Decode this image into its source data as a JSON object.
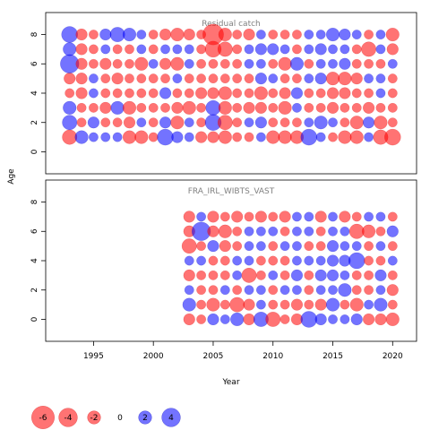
{
  "chart_data": {
    "type": "scatter",
    "xlabel": "Year",
    "ylabel": "Age",
    "xlim": [
      1991,
      2022
    ],
    "x_ticks": [
      1995,
      2000,
      2005,
      2010,
      2015,
      2020
    ],
    "y_ticks": [
      0,
      2,
      4,
      6,
      8
    ],
    "ylim": [
      -1.5,
      9.5
    ],
    "grid": false,
    "colors": {
      "negative": "#ff0000",
      "positive": "#0000ff",
      "alpha": 0.55
    },
    "panels": [
      {
        "title": "Residual catch",
        "years": [
          1993,
          1994,
          1995,
          1996,
          1997,
          1998,
          1999,
          2000,
          2001,
          2002,
          2003,
          2004,
          2005,
          2006,
          2007,
          2008,
          2009,
          2010,
          2011,
          2012,
          2013,
          2014,
          2015,
          2016,
          2017,
          2018,
          2019,
          2020
        ],
        "ages": [
          1,
          2,
          3,
          4,
          5,
          6,
          7,
          8
        ],
        "residuals": [
          [
            -2.5,
            2,
            1,
            1,
            1,
            -2,
            -2,
            -1,
            3,
            1.5,
            1,
            -1.5,
            -1.5,
            -2,
            -1,
            -1,
            1,
            -2,
            -2,
            -2,
            3,
            1,
            -1,
            -2,
            -2,
            1,
            -2.5,
            -3
          ],
          [
            2.5,
            -1,
            1.5,
            -1,
            -1,
            -1.5,
            1,
            -1,
            1.5,
            -2,
            1,
            -1,
            3,
            -2.5,
            -1,
            1,
            1.5,
            -1,
            -1,
            -1,
            1,
            2,
            1,
            -1,
            -2,
            1.5,
            -2,
            -1
          ],
          [
            2,
            -1,
            -1,
            -1.5,
            2,
            -2,
            -1,
            -1,
            -1,
            -1.5,
            -2,
            -1,
            2.5,
            -2,
            -1,
            -1.5,
            -1.5,
            -1,
            -2,
            1,
            -1,
            -1,
            -1.5,
            -1,
            -1,
            -1.5,
            -1,
            -1
          ],
          [
            -1,
            -1.5,
            1,
            -1,
            -1,
            -1,
            -1,
            -1,
            1.5,
            -1,
            -1,
            -1.5,
            -1.5,
            -2,
            -1,
            -1,
            -2,
            -1,
            -1.5,
            1.5,
            -1,
            -1,
            -1.5,
            -1.5,
            -1,
            -1,
            1,
            -1
          ],
          [
            -1.5,
            -1.5,
            1,
            -1,
            -1.5,
            -1,
            -1,
            -1,
            -1,
            1,
            -1,
            -1,
            -1,
            -1,
            -1,
            -1,
            1.5,
            1,
            -1,
            -1,
            1,
            1.5,
            -2,
            -2,
            -1.5,
            1,
            1,
            -1
          ],
          [
            4,
            -1.5,
            -1,
            -1.5,
            -1,
            -1,
            -2,
            1,
            -1.5,
            -2,
            1,
            -1,
            -1,
            -1,
            -1,
            1,
            1,
            -1,
            -2,
            2,
            -1,
            1,
            1,
            1.5,
            -1,
            -1,
            -1,
            1
          ],
          [
            2,
            -1.5,
            -1,
            1,
            -1,
            -1,
            1,
            -1,
            1,
            1,
            1,
            -1,
            -3,
            -2.5,
            -1,
            1,
            1.5,
            1.5,
            1,
            -1,
            1,
            1.5,
            1,
            1,
            -1,
            -2.5,
            1,
            -1.5
          ],
          [
            3,
            -1.5,
            -1,
            1.5,
            2.5,
            2,
            1,
            -1,
            -1.5,
            -2,
            -1.5,
            -1,
            -5,
            -2,
            -1,
            -1.5,
            1,
            -1,
            -1,
            -1,
            1,
            1,
            2,
            1.5,
            1,
            -1,
            1,
            -2
          ]
        ],
        "_row_order_note": ""
      },
      {
        "title": "FRA_IRL_WIBTS_VAST",
        "years": [
          2003,
          2004,
          2005,
          2006,
          2007,
          2008,
          2009,
          2010,
          2011,
          2012,
          2013,
          2014,
          2015,
          2016,
          2017,
          2018,
          2019,
          2020
        ],
        "ages": [
          0,
          1,
          2,
          3,
          4,
          5,
          6,
          7
        ],
        "residuals": [
          [
            -1.5,
            -1,
            1.5,
            1,
            2,
            -1.5,
            2.5,
            -2.5,
            -1,
            -1.5,
            3,
            1.5,
            1,
            1,
            1.5,
            -1.5,
            -1.5,
            -2
          ],
          [
            2,
            -1,
            -2,
            -1,
            -2.5,
            -1.5,
            1,
            -1,
            -1,
            -1.5,
            -1,
            -1.5,
            2,
            -1,
            -2,
            1,
            2,
            -1
          ],
          [
            1,
            -1,
            -1,
            1,
            -1,
            1,
            1,
            -1,
            1,
            1,
            -1,
            1,
            1,
            2,
            -1,
            -1,
            1,
            -1.5
          ],
          [
            -1.5,
            -1,
            -1,
            -1,
            1,
            -2.5,
            -1,
            1,
            -1,
            1.5,
            -1,
            1.5,
            1.5,
            1,
            -1,
            -1,
            1.5,
            -1
          ],
          [
            1,
            1,
            -1,
            -1,
            1,
            1,
            -1,
            -1,
            -1,
            1,
            1,
            1,
            1.5,
            1.5,
            3,
            -1,
            -1,
            1
          ],
          [
            -2.5,
            -1,
            1.5,
            -1.5,
            -1,
            1,
            1,
            -1,
            1,
            1,
            -1,
            -1,
            1.5,
            1,
            1,
            -1,
            1,
            -1
          ],
          [
            -1.5,
            4,
            -1.5,
            -2,
            -1,
            1,
            1,
            1,
            -1,
            1,
            1,
            -1,
            1,
            1,
            -2.5,
            -2,
            -1,
            1.5
          ],
          [
            -1.5,
            1,
            -1.5,
            -1,
            -1.5,
            -1,
            -1.5,
            -1,
            -1.5,
            1,
            1,
            -1.5,
            1,
            -1.5,
            -1,
            1,
            1,
            -1
          ]
        ]
      }
    ],
    "legend": {
      "values": [
        -6,
        -4,
        -2,
        0,
        2,
        4
      ],
      "labels": [
        "-6",
        "-4",
        "-2",
        "0",
        "2",
        "4"
      ],
      "placement": "bottom-left"
    }
  }
}
